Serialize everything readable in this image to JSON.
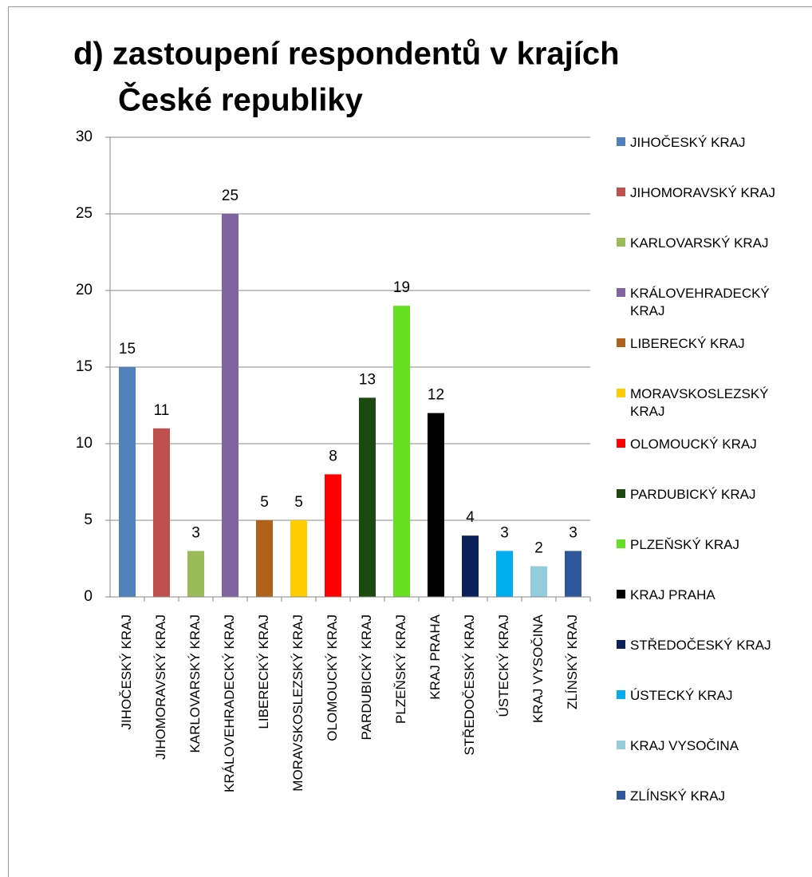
{
  "chart_data": {
    "type": "bar",
    "title": [
      "d) zastoupení respondentů v krajích",
      "České republiky"
    ],
    "categories": [
      "JIHOČESKÝ KRAJ",
      "JIHOMORAVSKÝ KRAJ",
      "KARLOVARSKÝ KRAJ",
      "KRÁLOVEHRADECKÝ KRAJ",
      "LIBERECKÝ KRAJ",
      "MORAVSKOSLEZSKÝ KRAJ",
      "OLOMOUCKÝ KRAJ",
      "PARDUBICKÝ KRAJ",
      "PLZEŇSKÝ KRAJ",
      "KRAJ PRAHA",
      "STŘEDOČESKÝ KRAJ",
      "ÚSTECKÝ KRAJ",
      "KRAJ VYSOČINA",
      "ZLÍNSKÝ KRAJ"
    ],
    "values": [
      15,
      11,
      3,
      25,
      5,
      5,
      8,
      13,
      19,
      12,
      4,
      3,
      2,
      3
    ],
    "colors": [
      "#4f81bd",
      "#c0504d",
      "#9bbb59",
      "#8064a2",
      "#b0621b",
      "#ffcc00",
      "#ff0000",
      "#1a4a0f",
      "#66e022",
      "#000000",
      "#0a2058",
      "#00aeef",
      "#93cddd",
      "#2e5899"
    ],
    "ylim": [
      0,
      30
    ],
    "yticks": [
      0,
      5,
      10,
      15,
      20,
      25,
      30
    ],
    "grid": true,
    "legend": "right"
  }
}
